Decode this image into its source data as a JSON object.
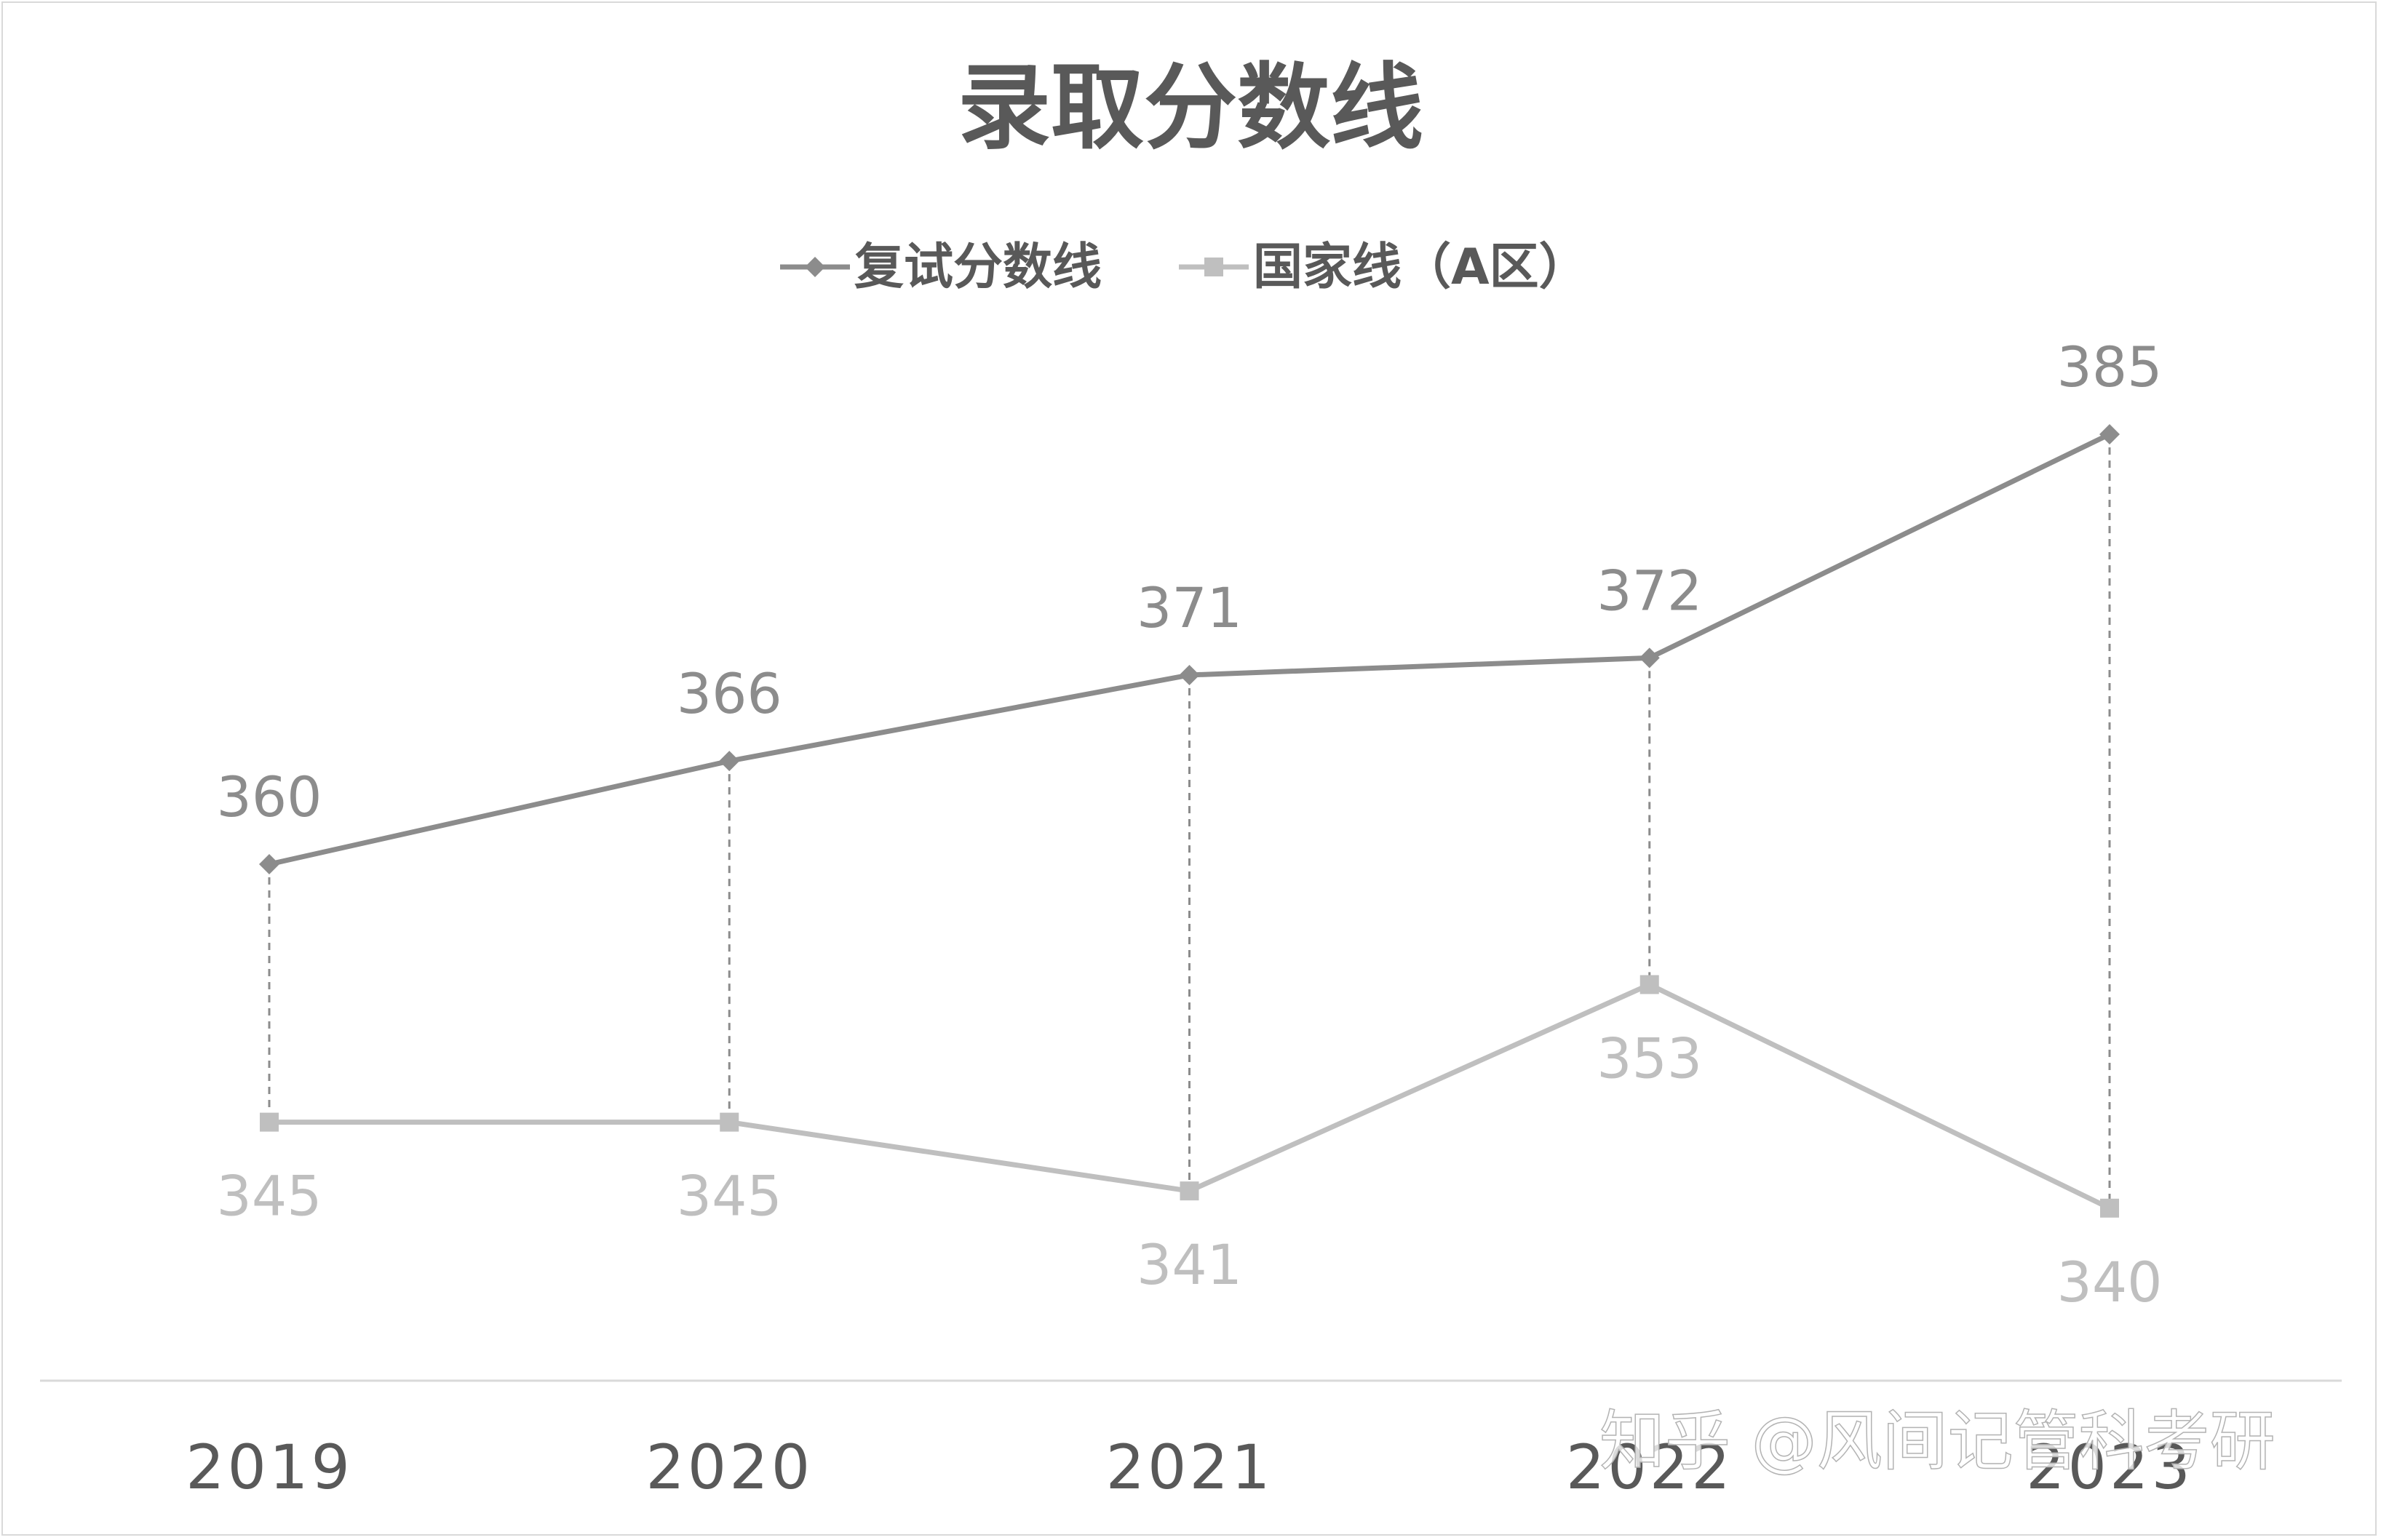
{
  "chart_data": {
    "type": "line",
    "title": "录取分数线",
    "categories": [
      "2019",
      "2020",
      "2021",
      "2022",
      "2023"
    ],
    "series": [
      {
        "name": "复试分数线",
        "values": [
          360,
          366,
          371,
          372,
          385
        ],
        "color": "#8c8c8c",
        "marker": "diamond"
      },
      {
        "name": "国家线（A区）",
        "values": [
          345,
          345,
          341,
          353,
          340
        ],
        "color": "#bfbfbf",
        "marker": "square"
      }
    ],
    "xlabel": "",
    "ylabel": "",
    "ylim": [
      330,
      390
    ],
    "grid": false,
    "y_axis_visible": false,
    "legend_position": "top",
    "data_labels": true,
    "drop_lines": true
  },
  "watermark": "知乎 @风间记管科考研"
}
